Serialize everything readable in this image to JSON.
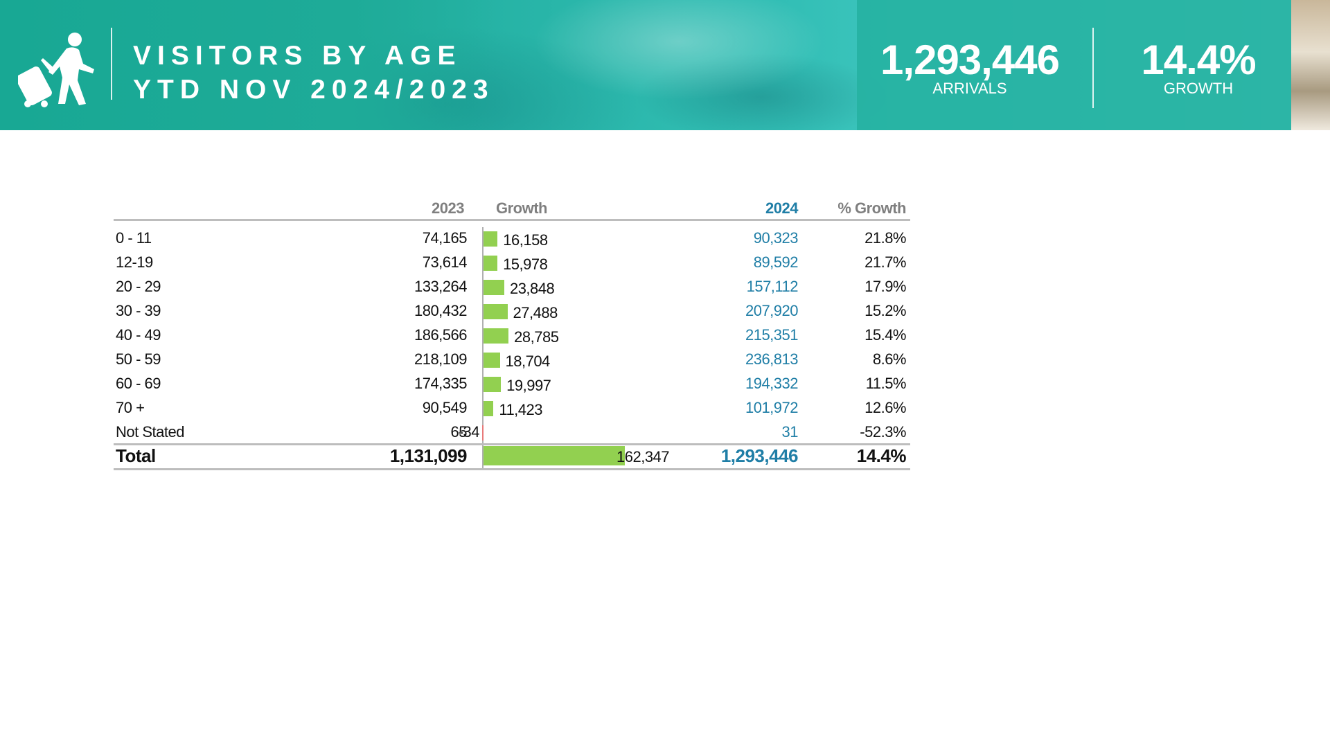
{
  "header": {
    "title_line1": "VISITORS BY AGE",
    "title_line2": "YTD NOV 2024/2023",
    "arrivals_value": "1,293,446",
    "arrivals_label": "ARRIVALS",
    "growth_value": "14.4%",
    "growth_label": "GROWTH"
  },
  "table": {
    "columns": {
      "y2023": "2023",
      "growth": "Growth",
      "y2024": "2024",
      "pct": "% Growth"
    }
  },
  "colors": {
    "banner_teal": "#1eab98",
    "positive_bar": "#92d050",
    "negative_bar": "#e87a7a",
    "accent_blue": "#1f7ea6"
  },
  "chart_data": {
    "type": "table",
    "title": "VISITORS BY AGE YTD NOV 2024/2023",
    "columns": [
      "",
      "2023",
      "Growth",
      "2024",
      "% Growth"
    ],
    "rows": [
      {
        "label": "0 - 11",
        "y2023": "74,165",
        "growth": "16,158",
        "growth_value": 16158,
        "y2024": "90,323",
        "pct": "21.8%"
      },
      {
        "label": "12-19",
        "y2023": "73,614",
        "growth": "15,978",
        "growth_value": 15978,
        "y2024": "89,592",
        "pct": "21.7%"
      },
      {
        "label": "20 - 29",
        "y2023": "133,264",
        "growth": "23,848",
        "growth_value": 23848,
        "y2024": "157,112",
        "pct": "17.9%"
      },
      {
        "label": "30 - 39",
        "y2023": "180,432",
        "growth": "27,488",
        "growth_value": 27488,
        "y2024": "207,920",
        "pct": "15.2%"
      },
      {
        "label": "40 - 49",
        "y2023": "186,566",
        "growth": "28,785",
        "growth_value": 28785,
        "y2024": "215,351",
        "pct": "15.4%"
      },
      {
        "label": "50 - 59",
        "y2023": "218,109",
        "growth": "18,704",
        "growth_value": 18704,
        "y2024": "236,813",
        "pct": "8.6%"
      },
      {
        "label": "60 - 69",
        "y2023": "174,335",
        "growth": "19,997",
        "growth_value": 19997,
        "y2024": "194,332",
        "pct": "11.5%"
      },
      {
        "label": "70 +",
        "y2023": "90,549",
        "growth": "11,423",
        "growth_value": 11423,
        "y2024": "101,972",
        "pct": "12.6%"
      },
      {
        "label": "Not Stated",
        "y2023": "65",
        "growth": "-34",
        "growth_value": -34,
        "y2024": "31",
        "pct": "-52.3%"
      }
    ],
    "total": {
      "label": "Total",
      "y2023": "1,131,099",
      "growth": "162,347",
      "growth_value": 162347,
      "y2024": "1,293,446",
      "pct": "14.4%"
    }
  }
}
